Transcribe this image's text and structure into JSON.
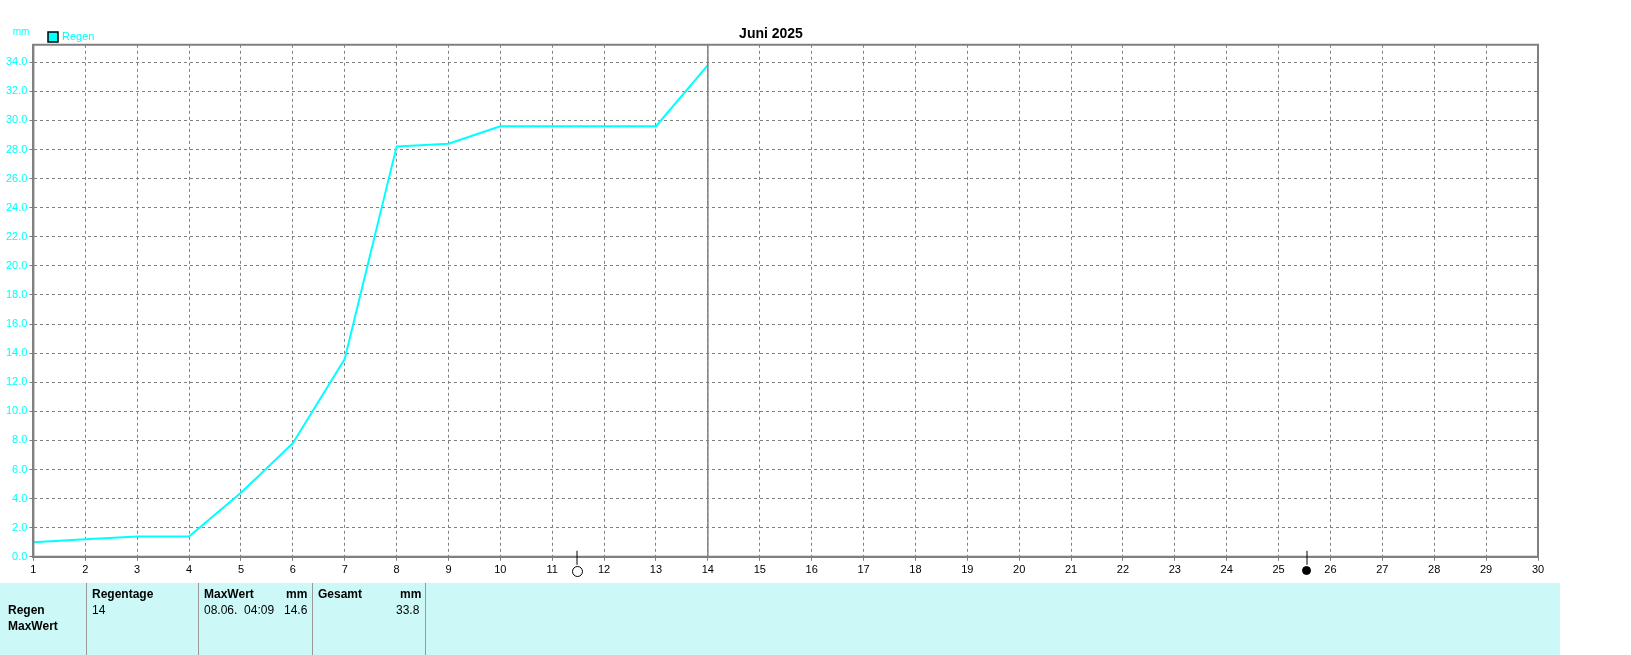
{
  "chart_data": {
    "type": "line",
    "title": "Juni 2025",
    "ylabel": "mm",
    "x": [
      1,
      2,
      3,
      4,
      5,
      6,
      7,
      8,
      9,
      10,
      11,
      12,
      13,
      14
    ],
    "series": [
      {
        "name": "Regen",
        "color": "#00ffff",
        "values": [
          1.0,
          1.2,
          1.4,
          1.4,
          4.4,
          7.8,
          13.6,
          28.2,
          28.4,
          29.6,
          29.6,
          29.6,
          29.6,
          33.8
        ]
      }
    ],
    "xlim": [
      1,
      30
    ],
    "xticks": [
      1,
      2,
      3,
      4,
      5,
      6,
      7,
      8,
      9,
      10,
      11,
      12,
      13,
      14,
      15,
      16,
      17,
      18,
      19,
      20,
      21,
      22,
      23,
      24,
      25,
      26,
      27,
      28,
      29,
      30
    ],
    "ylim": [
      0,
      35.2
    ],
    "yticks": [
      {
        "value": 0,
        "label": "0.0"
      },
      {
        "value": 2,
        "label": "2.0"
      },
      {
        "value": 4,
        "label": "4.0"
      },
      {
        "value": 6,
        "label": "6.0"
      },
      {
        "value": 8,
        "label": "8.0"
      },
      {
        "value": 10,
        "label": "10.0"
      },
      {
        "value": 12,
        "label": "12.0"
      },
      {
        "value": 14,
        "label": "14.0"
      },
      {
        "value": 16,
        "label": "16.0"
      },
      {
        "value": 18,
        "label": "18.0"
      },
      {
        "value": 20,
        "label": "20.0"
      },
      {
        "value": 22,
        "label": "22.0"
      },
      {
        "value": 24,
        "label": "24.0"
      },
      {
        "value": 26,
        "label": "26.0"
      },
      {
        "value": 28,
        "label": "28.0"
      },
      {
        "value": 30,
        "label": "30.0"
      },
      {
        "value": 32,
        "label": "32.0"
      },
      {
        "value": 34,
        "label": "34.0"
      }
    ],
    "ref_lines": [
      {
        "axis": "x",
        "value": 14,
        "color": "#808080",
        "line_style": "solid"
      }
    ],
    "grid": true,
    "legend": "top left",
    "marker": "none",
    "line_style": "solid",
    "annotations": [
      "Regen",
      "MaxWert",
      "Regentage",
      "14",
      "MaxWert",
      "mm",
      "08.06.  04:09",
      "14.6",
      "Gesamt",
      "mm",
      "33.8"
    ]
  }
}
